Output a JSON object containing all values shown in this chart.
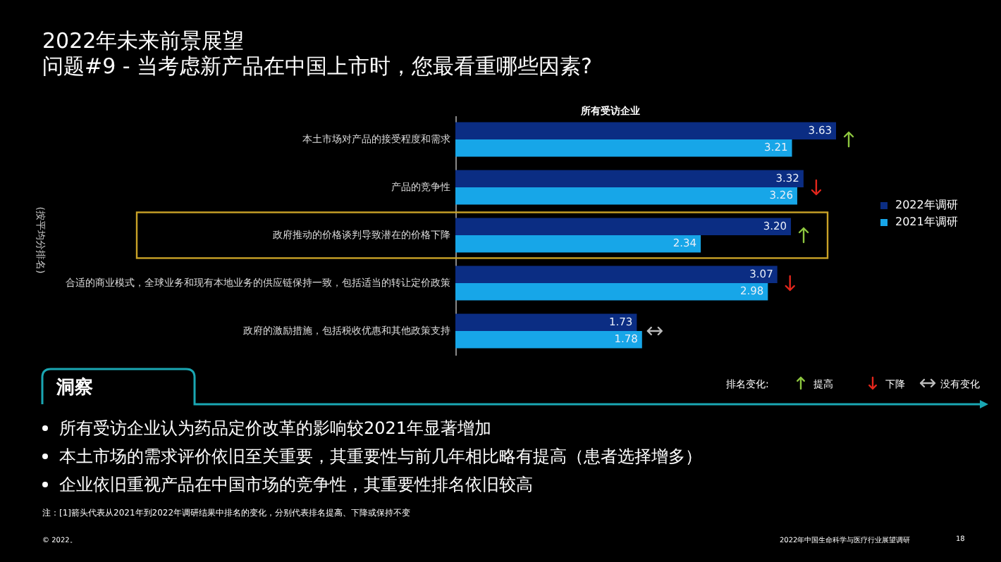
{
  "chart_data": {
    "type": "bar",
    "orientation": "horizontal",
    "title": "2022年未来前景展望",
    "subtitle": "问题#9 - 当考虑新产品在中国上市时，您最看重哪些因素?",
    "ylabel": "(按平均分排名)",
    "categories": [
      "本土市场对产品的接受程度和需求",
      "产品的竞争性",
      "政府推动的价格谈判导致潜在的价格下降",
      "合适的商业模式，全球业务和现有本地业务的供应链保持一致，包括适当的转让定价政策",
      "政府的激励措施，包括税收优惠和其他政策支持"
    ],
    "series": [
      {
        "name": "2022年调研",
        "color": "#0b2d83",
        "values": [
          3.63,
          3.32,
          3.2,
          3.07,
          1.73
        ],
        "value_labels": [
          "3.63",
          "3.32",
          "3.20",
          "3.07",
          "1.73"
        ]
      },
      {
        "name": "2021年调研",
        "color": "#17a6e8",
        "values": [
          3.21,
          3.26,
          2.34,
          2.98,
          1.78
        ],
        "value_labels": [
          "3.21",
          "3.26",
          "2.34",
          "2.98",
          "1.78"
        ]
      }
    ],
    "legend": "right",
    "annotations": [
      "所有受访企业",
      "洞察",
      "排名变化:",
      "提高",
      "下降",
      "没有变化",
      "所有受访企业认为药品定价改革的影响较2021年显著增加",
      "本土市场的需求评价依旧至关重要，其重要性与前几年相比略有提高（患者选择增多）",
      "企业依旧重视产品在中国市场的竞争性，其重要性排名依旧较高",
      "注：[1]箭头代表从2021年到2022年调研结果中排名的变化，分别代表排名提高、下降或保持不变",
      "© 2022。",
      "2022年中国生命科学与医疗行业展望调研",
      "18"
    ]
  }
}
